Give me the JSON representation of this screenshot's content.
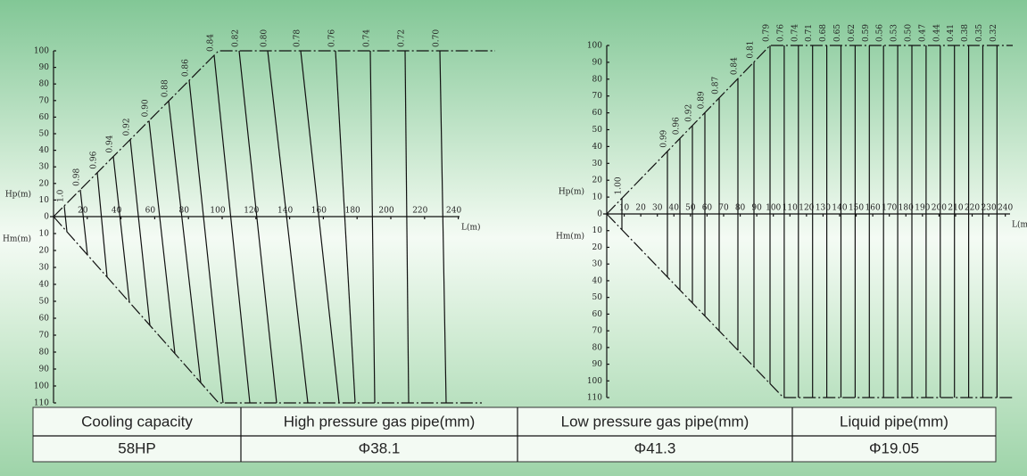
{
  "left": {
    "hp_label": "Hp(m)",
    "hm_label": "Hm(m)",
    "l_label": "L(m)",
    "hp_ticks": [
      100,
      90,
      80,
      70,
      60,
      50,
      40,
      30,
      20,
      10,
      0
    ],
    "hm_ticks": [
      10,
      20,
      30,
      40,
      50,
      60,
      70,
      80,
      90,
      100,
      110
    ],
    "x_ticks": [
      20,
      40,
      60,
      80,
      100,
      120,
      140,
      160,
      180,
      200,
      220,
      240
    ],
    "factors": [
      "1.0",
      "0.98",
      "0.96",
      "0.94",
      "0.92",
      "0.90",
      "0.88",
      "0.86",
      "0.84",
      "0.82",
      "0.80",
      "0.78",
      "0.76",
      "0.74",
      "0.72",
      "0.70"
    ]
  },
  "right": {
    "hp_label": "Hp(m)",
    "hm_label": "Hm(m)",
    "l_label": "L(m)",
    "hp_ticks": [
      100,
      90,
      80,
      70,
      60,
      50,
      40,
      30,
      20,
      10,
      0
    ],
    "hm_ticks": [
      10,
      20,
      30,
      40,
      50,
      60,
      70,
      80,
      90,
      100,
      110
    ],
    "x_ticks": [
      10,
      20,
      30,
      40,
      50,
      60,
      70,
      80,
      90,
      100,
      110,
      120,
      130,
      140,
      150,
      160,
      170,
      180,
      190,
      200,
      210,
      220,
      230,
      240
    ],
    "factors": [
      "1.00",
      "0.99",
      "0.96",
      "0.92",
      "0.89",
      "0.87",
      "0.84",
      "0.81",
      "0.79",
      "0.76",
      "0.74",
      "0.71",
      "0.68",
      "0.65",
      "0.62",
      "0.59",
      "0.56",
      "0.53",
      "0.50",
      "0.47",
      "0.44",
      "0.41",
      "0.38",
      "0.35",
      "0.32"
    ]
  },
  "table": {
    "header": [
      "Cooling capacity",
      "High pressure gas pipe(mm)",
      "Low pressure gas pipe(mm)",
      "Liquid pipe(mm)"
    ],
    "rows": [
      [
        "58HP",
        "Φ38.1",
        "Φ41.3",
        "Φ19.05"
      ]
    ]
  }
}
